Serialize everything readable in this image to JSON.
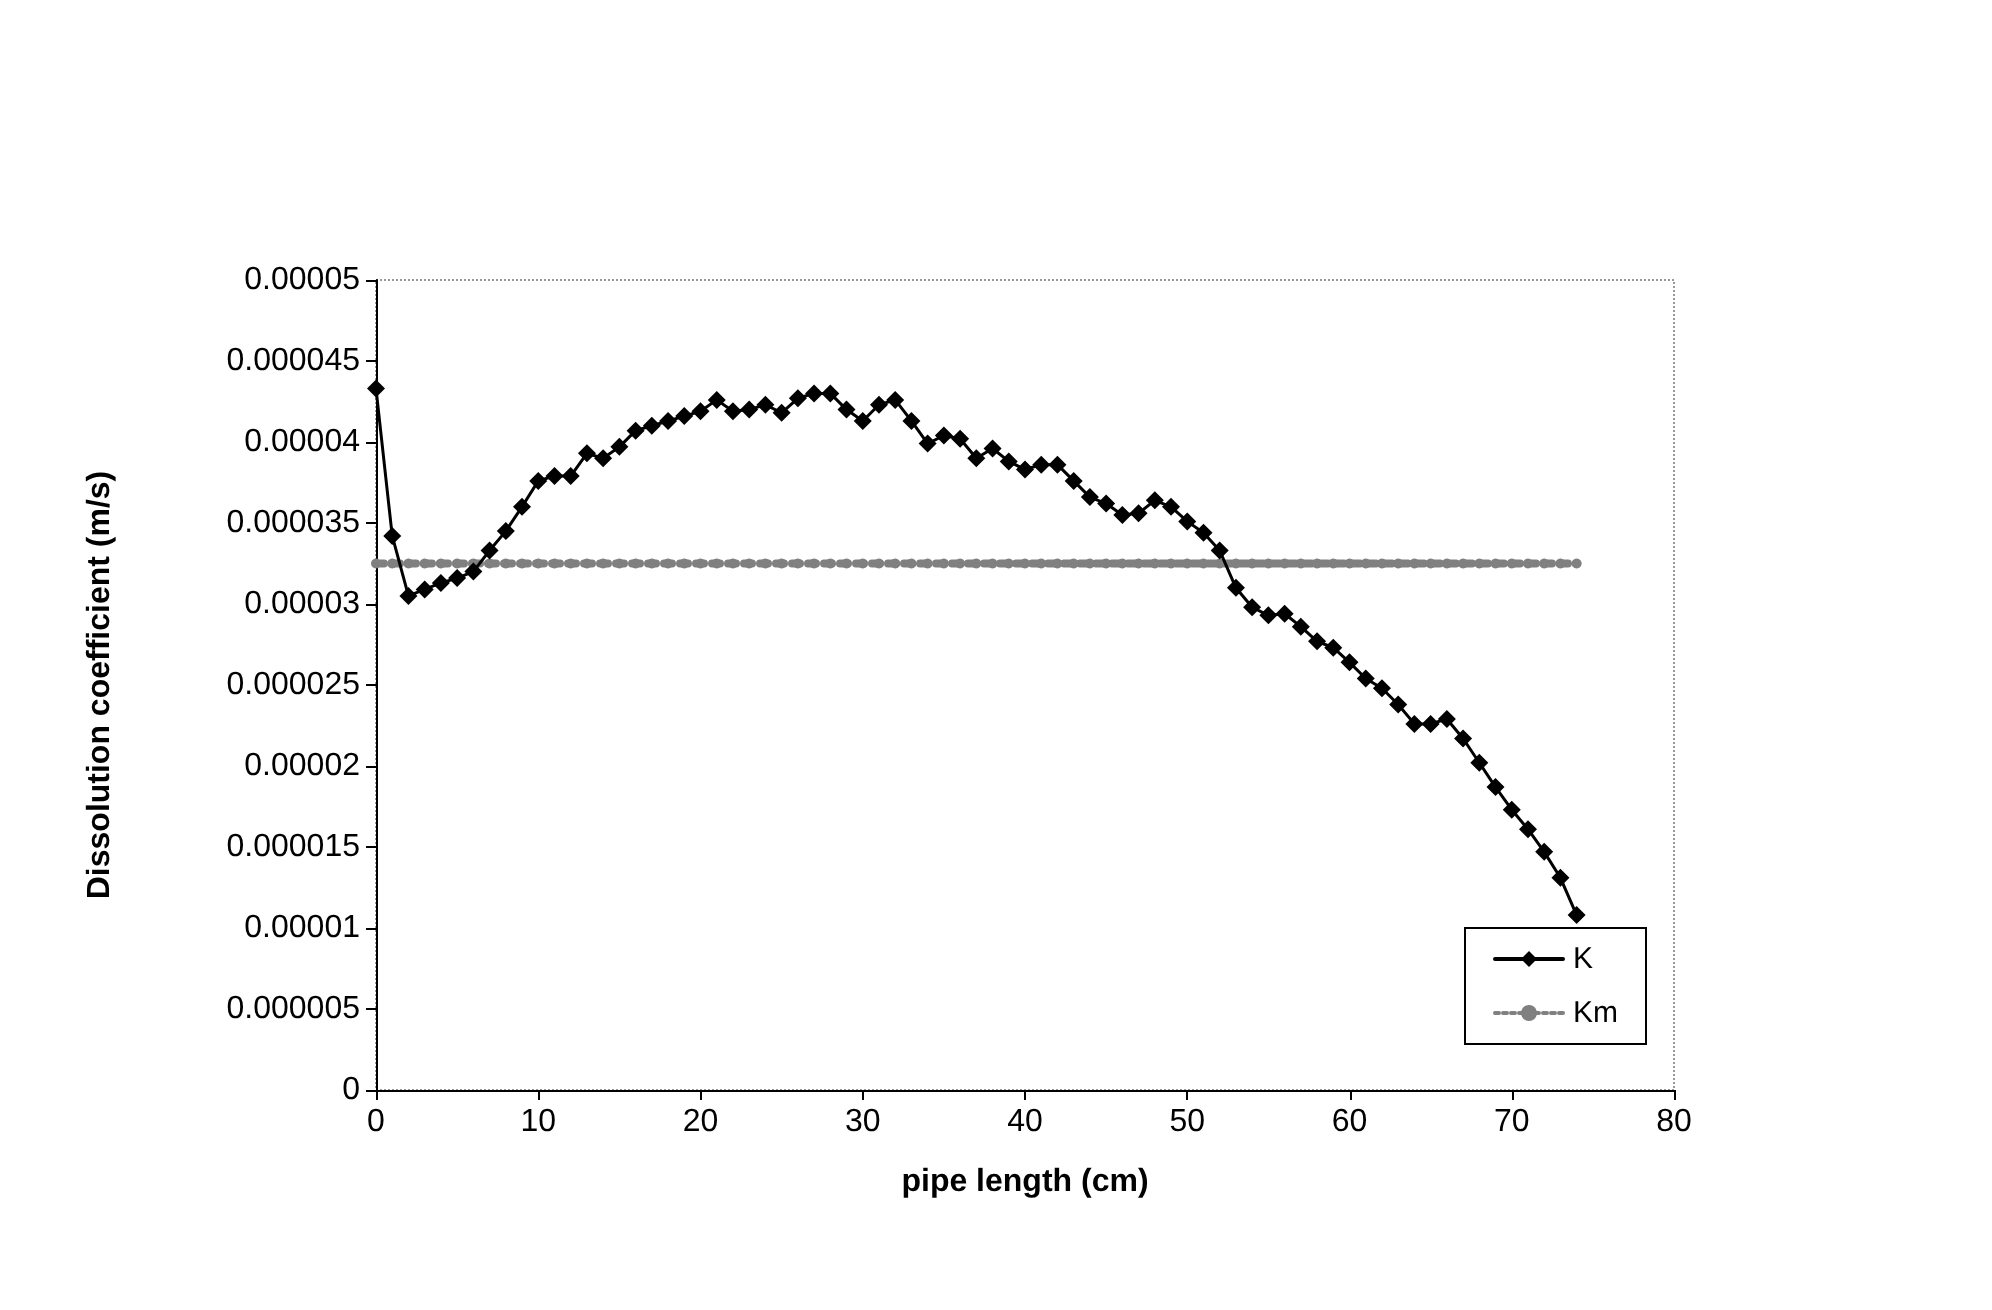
{
  "chart_data": {
    "type": "line",
    "xlabel": "pipe length (cm)",
    "ylabel": "Dissolution coefficient (m/s)",
    "x": [
      0,
      1,
      2,
      3,
      4,
      5,
      6,
      7,
      8,
      9,
      10,
      11,
      12,
      13,
      14,
      15,
      16,
      17,
      18,
      19,
      20,
      21,
      22,
      23,
      24,
      25,
      26,
      27,
      28,
      29,
      30,
      31,
      32,
      33,
      34,
      35,
      36,
      37,
      38,
      39,
      40,
      41,
      42,
      43,
      44,
      45,
      46,
      47,
      48,
      49,
      50,
      51,
      52,
      53,
      54,
      55,
      56,
      57,
      58,
      59,
      60,
      61,
      62,
      63,
      64,
      65,
      66,
      67,
      68,
      69,
      70,
      71,
      72,
      73,
      74
    ],
    "series": [
      {
        "name": "K",
        "color": "#000000",
        "marker": "diamond",
        "line_style": "solid",
        "values": [
          4.33e-05,
          3.42e-05,
          3.05e-05,
          3.09e-05,
          3.13e-05,
          3.16e-05,
          3.2e-05,
          3.33e-05,
          3.45e-05,
          3.6e-05,
          3.76e-05,
          3.79e-05,
          3.79e-05,
          3.93e-05,
          3.9e-05,
          3.97e-05,
          4.07e-05,
          4.1e-05,
          4.13e-05,
          4.16e-05,
          4.19e-05,
          4.26e-05,
          4.19e-05,
          4.2e-05,
          4.23e-05,
          4.18e-05,
          4.27e-05,
          4.3e-05,
          4.3e-05,
          4.2e-05,
          4.13e-05,
          4.23e-05,
          4.26e-05,
          4.13e-05,
          3.99e-05,
          4.04e-05,
          4.02e-05,
          3.9e-05,
          3.96e-05,
          3.88e-05,
          3.83e-05,
          3.86e-05,
          3.86e-05,
          3.76e-05,
          3.66e-05,
          3.62e-05,
          3.55e-05,
          3.56e-05,
          3.64e-05,
          3.6e-05,
          3.51e-05,
          3.44e-05,
          3.33e-05,
          3.1e-05,
          2.98e-05,
          2.93e-05,
          2.94e-05,
          2.86e-05,
          2.77e-05,
          2.73e-05,
          2.64e-05,
          2.54e-05,
          2.48e-05,
          2.38e-05,
          2.26e-05,
          2.26e-05,
          2.29e-05,
          2.17e-05,
          2.02e-05,
          1.87e-05,
          1.73e-05,
          1.61e-05,
          1.47e-05,
          1.31e-05,
          1.08e-05
        ]
      },
      {
        "name": "Km",
        "color": "#808080",
        "marker": "circle",
        "line_style": "dotted",
        "values": [
          3.25e-05,
          3.25e-05,
          3.25e-05,
          3.25e-05,
          3.25e-05,
          3.25e-05,
          3.25e-05,
          3.25e-05,
          3.25e-05,
          3.25e-05,
          3.25e-05,
          3.25e-05,
          3.25e-05,
          3.25e-05,
          3.25e-05,
          3.25e-05,
          3.25e-05,
          3.25e-05,
          3.25e-05,
          3.25e-05,
          3.25e-05,
          3.25e-05,
          3.25e-05,
          3.25e-05,
          3.25e-05,
          3.25e-05,
          3.25e-05,
          3.25e-05,
          3.25e-05,
          3.25e-05,
          3.25e-05,
          3.25e-05,
          3.25e-05,
          3.25e-05,
          3.25e-05,
          3.25e-05,
          3.25e-05,
          3.25e-05,
          3.25e-05,
          3.25e-05,
          3.25e-05,
          3.25e-05,
          3.25e-05,
          3.25e-05,
          3.25e-05,
          3.25e-05,
          3.25e-05,
          3.25e-05,
          3.25e-05,
          3.25e-05,
          3.25e-05,
          3.25e-05,
          3.25e-05,
          3.25e-05,
          3.25e-05,
          3.25e-05,
          3.25e-05,
          3.25e-05,
          3.25e-05,
          3.25e-05,
          3.25e-05,
          3.25e-05,
          3.25e-05,
          3.25e-05,
          3.25e-05,
          3.25e-05,
          3.25e-05,
          3.25e-05,
          3.25e-05,
          3.25e-05,
          3.25e-05,
          3.25e-05,
          3.25e-05,
          3.25e-05,
          3.25e-05
        ]
      }
    ],
    "xlim": [
      0,
      80
    ],
    "xticks": [
      0,
      10,
      20,
      30,
      40,
      50,
      60,
      70,
      80
    ],
    "ylim": [
      0,
      5e-05
    ],
    "yticks": [
      0,
      {
        "value": 5e-06,
        "label": "0.000005"
      },
      {
        "value": 1e-05,
        "label": "0.00001"
      },
      {
        "value": 1.5e-05,
        "label": "0.000015"
      },
      {
        "value": 2e-05,
        "label": "0.00002"
      },
      {
        "value": 2.5e-05,
        "label": "0.000025"
      },
      {
        "value": 3e-05,
        "label": "0.00003"
      },
      {
        "value": 3.5e-05,
        "label": "0.000035"
      },
      {
        "value": 4e-05,
        "label": "0.00004"
      },
      {
        "value": 4.5e-05,
        "label": "0.000045"
      },
      {
        "value": 5e-05,
        "label": "0.00005"
      }
    ],
    "grid": false,
    "legend": "bottom right"
  }
}
